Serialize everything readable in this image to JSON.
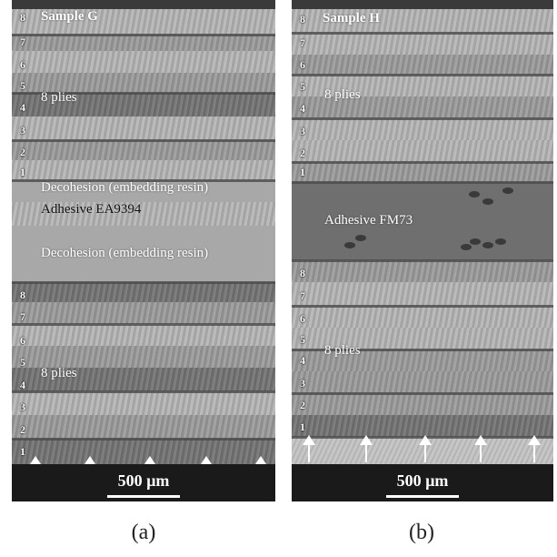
{
  "panel_a": {
    "sample_label": "Sample G",
    "ply_numbers_top": [
      "8",
      "7",
      "6",
      "5",
      "4",
      "3",
      "2",
      "1"
    ],
    "plies_label_top": "8 plies",
    "decohesion_label_1": "Decohesion (embedding resin)",
    "adhesive_label": "Adhesive EA9394",
    "decohesion_label_2": "Decohesion (embedding resin)",
    "ply_numbers_bottom": [
      "8",
      "7",
      "6",
      "5",
      "4",
      "3",
      "2",
      "1"
    ],
    "plies_label_bottom": "8 plies",
    "scale_label": "500 µm",
    "caption": "(a)"
  },
  "panel_b": {
    "sample_label": "Sample H",
    "ply_numbers_top": [
      "8",
      "7",
      "6",
      "5",
      "4",
      "3",
      "2",
      "1"
    ],
    "plies_label_top": "8 plies",
    "adhesive_label": "Adhesive FM73",
    "ply_numbers_bottom": [
      "8",
      "7",
      "6",
      "5",
      "4",
      "3",
      "2",
      "1"
    ],
    "plies_label_bottom": "8 plies",
    "scale_label": "500 µm",
    "caption": "(b)"
  }
}
